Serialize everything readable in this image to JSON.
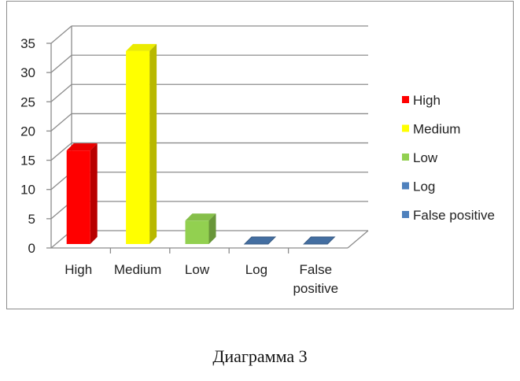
{
  "chart_data": {
    "type": "bar",
    "style": "3d-column",
    "categories": [
      "High",
      "Medium",
      "Low",
      "Log",
      "False positive"
    ],
    "category_lines": [
      [
        "High"
      ],
      [
        "Medium"
      ],
      [
        "Low"
      ],
      [
        "Log"
      ],
      [
        "False",
        "positive"
      ]
    ],
    "values": [
      16,
      33,
      4,
      0,
      0
    ],
    "colors": [
      "#ff0000",
      "#ffff00",
      "#92d050",
      "#4f81bd",
      "#4f81bd"
    ],
    "ylim": [
      0,
      35
    ],
    "yticks": [
      "0",
      "5",
      "10",
      "15",
      "20",
      "25",
      "30",
      "35"
    ],
    "grid": true,
    "legend_position": "right",
    "legend": [
      {
        "label": "High",
        "color": "#ff0000"
      },
      {
        "label": "Medium",
        "color": "#ffff00"
      },
      {
        "label": "Low",
        "color": "#92d050"
      },
      {
        "label": "Log",
        "color": "#4f81bd"
      },
      {
        "label": "False positive",
        "color": "#4f81bd"
      }
    ]
  },
  "caption": "Диаграмма 3"
}
